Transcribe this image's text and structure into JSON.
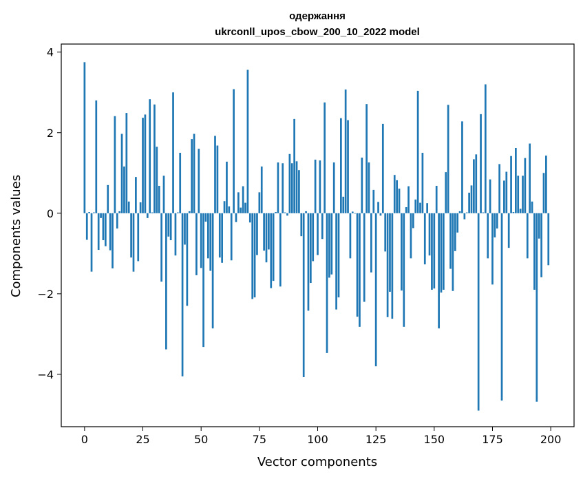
{
  "chart_data": {
    "type": "bar",
    "title": "одержання",
    "subtitle": "ukrconll_upos_cbow_200_10_2022 model",
    "xlabel": "Vector components",
    "ylabel": "Components values",
    "xlim": [
      -10,
      210
    ],
    "ylim": [
      -5.3,
      4.2
    ],
    "xticks": [
      0,
      25,
      50,
      75,
      100,
      125,
      150,
      175,
      200
    ],
    "yticks": [
      4,
      2,
      0,
      -2,
      -4
    ],
    "ytick_labels": [
      "4",
      "2",
      "0",
      "−2",
      "−4"
    ],
    "bar_color": "#1f77b4",
    "series": [
      {
        "name": "components",
        "x_start": 0,
        "values": [
          3.75,
          -0.66,
          0.03,
          -1.45,
          0.02,
          2.8,
          -0.91,
          -0.12,
          -0.67,
          -0.82,
          0.7,
          -0.92,
          -1.37,
          2.41,
          -0.38,
          0.05,
          1.97,
          1.16,
          2.49,
          0.29,
          -1.1,
          -1.45,
          0.9,
          -1.19,
          0.27,
          2.37,
          2.45,
          -0.12,
          2.83,
          0.02,
          2.7,
          1.65,
          0.68,
          -1.7,
          0.93,
          -3.38,
          -0.58,
          -0.67,
          3.0,
          -1.05,
          0.02,
          1.5,
          -4.05,
          -0.78,
          -2.3,
          0.05,
          1.84,
          1.97,
          -1.54,
          1.6,
          -1.36,
          -3.32,
          -0.21,
          -1.12,
          -1.43,
          -2.86,
          1.92,
          1.68,
          -1.1,
          -1.23,
          0.3,
          1.28,
          0.17,
          -1.17,
          3.08,
          -0.22,
          0.52,
          0.14,
          0.67,
          0.26,
          3.56,
          -0.23,
          -2.13,
          -2.09,
          -1.04,
          0.52,
          1.16,
          -0.93,
          -1.22,
          -0.9,
          -1.86,
          -1.68,
          0.03,
          1.26,
          -1.82,
          1.24,
          0.02,
          -0.06,
          1.47,
          1.24,
          2.34,
          1.29,
          1.07,
          -0.57,
          -4.07,
          0.05,
          -2.42,
          -1.73,
          -1.19,
          1.33,
          -1.04,
          1.31,
          -0.64,
          2.75,
          -3.47,
          -1.6,
          -1.52,
          1.26,
          -2.39,
          -2.09,
          2.36,
          0.41,
          3.07,
          2.31,
          -1.12,
          0.04,
          -0.01,
          -2.57,
          -2.82,
          1.38,
          -2.2,
          2.71,
          1.26,
          -1.47,
          0.58,
          -3.8,
          0.28,
          -0.06,
          2.22,
          -0.95,
          -2.58,
          -1.95,
          -2.62,
          0.95,
          0.82,
          0.61,
          -1.92,
          -2.82,
          0.15,
          0.67,
          -1.12,
          -0.37,
          0.34,
          3.04,
          0.26,
          1.5,
          -1.27,
          0.25,
          -1.05,
          -1.9,
          -1.87,
          0.68,
          -2.86,
          -1.97,
          -1.9,
          1.02,
          2.69,
          -1.38,
          -1.93,
          -0.94,
          -0.48,
          0.05,
          2.28,
          -0.15,
          0.02,
          0.51,
          0.69,
          1.34,
          1.46,
          -4.9,
          2.46,
          0.02,
          3.2,
          -1.12,
          0.84,
          -1.77,
          -0.6,
          -0.38,
          1.22,
          -4.65,
          0.81,
          1.03,
          -0.86,
          1.42,
          0.03,
          1.62,
          0.93,
          0.11,
          0.93,
          1.37,
          -1.12,
          1.73,
          0.29,
          -1.9,
          -4.68,
          -0.63,
          -1.59,
          1.0,
          1.43,
          -1.29
        ]
      }
    ]
  }
}
